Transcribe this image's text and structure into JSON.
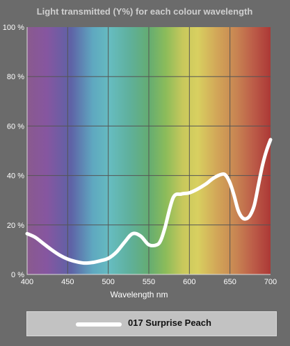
{
  "chart_data": {
    "type": "line",
    "title": "Light transmitted (Y%) for each colour wavelength",
    "xlabel": "Wavelength nm",
    "ylabel": "",
    "xlim": [
      400,
      700
    ],
    "ylim": [
      0,
      100
    ],
    "x_ticks": [
      400,
      450,
      500,
      550,
      600,
      650,
      700
    ],
    "y_ticks": [
      {
        "value": 0,
        "label": "0 %"
      },
      {
        "value": 20,
        "label": "20 %"
      },
      {
        "value": 40,
        "label": "40 %"
      },
      {
        "value": 60,
        "label": "60 %"
      },
      {
        "value": 80,
        "label": "80 %"
      },
      {
        "value": 100,
        "label": "100 %"
      }
    ],
    "grid": true,
    "legend_position": "bottom",
    "series": [
      {
        "name": "017 Surprise Peach",
        "color": "#ffffff",
        "x": [
          400,
          410,
          420,
          430,
          440,
          450,
          460,
          470,
          480,
          490,
          500,
          510,
          520,
          530,
          540,
          550,
          560,
          565,
          570,
          580,
          590,
          600,
          610,
          620,
          630,
          640,
          645,
          650,
          655,
          660,
          665,
          670,
          675,
          680,
          685,
          690,
          695,
          700
        ],
        "y": [
          16.5,
          15,
          12.5,
          10,
          7.8,
          6.2,
          5.2,
          4.6,
          4.8,
          5.5,
          6.5,
          9,
          13,
          16.5,
          15.5,
          12,
          12,
          14,
          19,
          31,
          32.5,
          33,
          34.5,
          36.5,
          39,
          40.5,
          40,
          37,
          32,
          26,
          23,
          22.5,
          24,
          28,
          36,
          44,
          50,
          54.5
        ]
      }
    ]
  },
  "legend": {
    "label": "017 Surprise Peach"
  }
}
